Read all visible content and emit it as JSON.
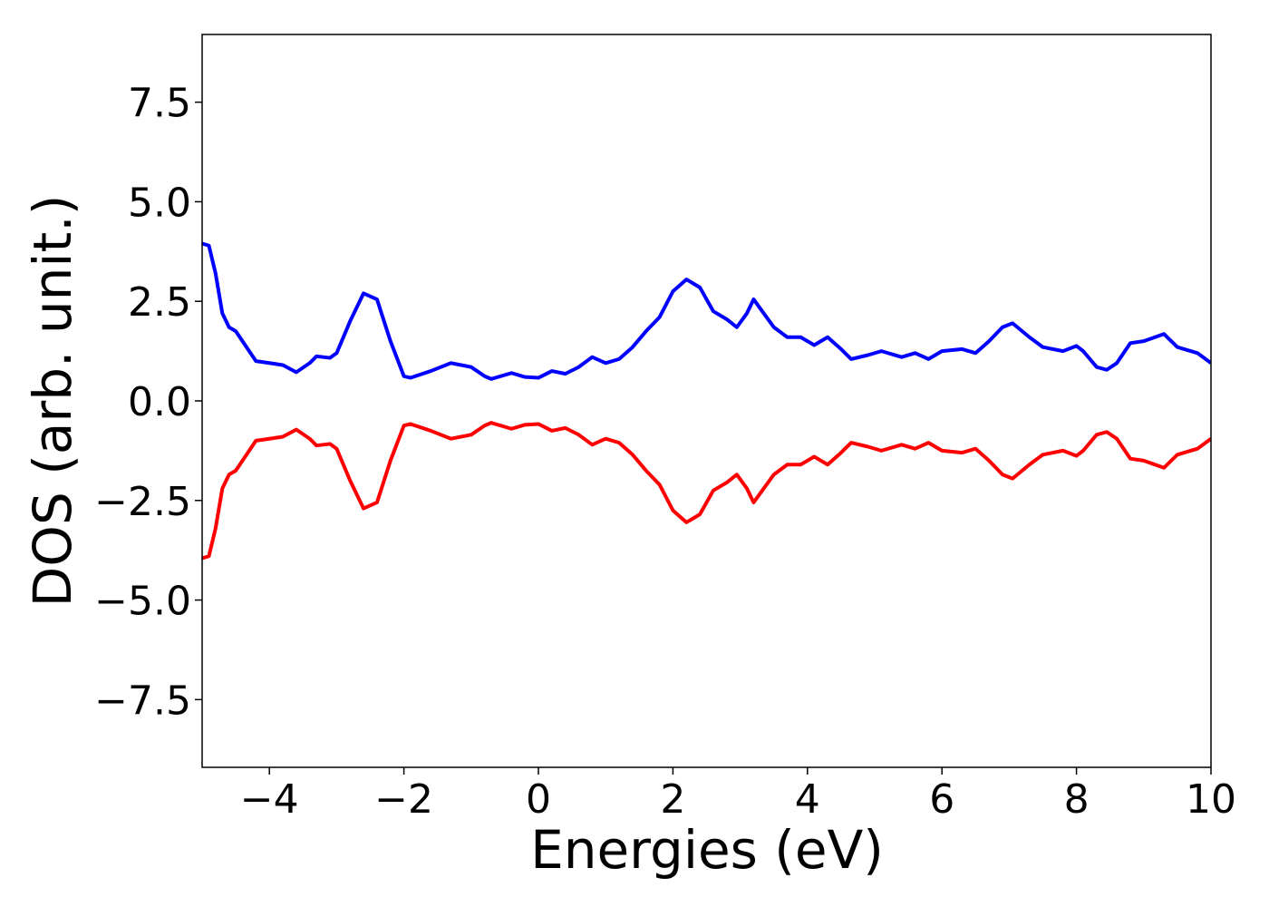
{
  "chart_data": {
    "type": "line",
    "xlabel": "Energies (eV)",
    "ylabel": "DOS (arb. unit.)",
    "x": [
      -5.0,
      -4.9,
      -4.8,
      -4.7,
      -4.6,
      -4.5,
      -4.4,
      -4.2,
      -4.0,
      -3.8,
      -3.6,
      -3.4,
      -3.3,
      -3.1,
      -3.0,
      -2.8,
      -2.6,
      -2.4,
      -2.2,
      -2.0,
      -1.9,
      -1.6,
      -1.3,
      -1.0,
      -0.8,
      -0.7,
      -0.4,
      -0.2,
      0.0,
      0.2,
      0.4,
      0.6,
      0.8,
      1.0,
      1.2,
      1.4,
      1.6,
      1.8,
      2.0,
      2.2,
      2.4,
      2.6,
      2.8,
      2.95,
      3.1,
      3.2,
      3.35,
      3.5,
      3.7,
      3.9,
      4.1,
      4.3,
      4.5,
      4.65,
      4.9,
      5.1,
      5.4,
      5.6,
      5.8,
      6.0,
      6.3,
      6.5,
      6.7,
      6.9,
      7.05,
      7.3,
      7.5,
      7.8,
      8.0,
      8.1,
      8.3,
      8.45,
      8.6,
      8.8,
      9.0,
      9.3,
      9.5,
      9.8,
      10.0
    ],
    "series": [
      {
        "color": "#0000ff",
        "values": [
          3.95,
          3.9,
          3.2,
          2.2,
          1.85,
          1.75,
          1.5,
          1.0,
          0.95,
          0.9,
          0.72,
          0.95,
          1.12,
          1.08,
          1.2,
          2.0,
          2.7,
          2.55,
          1.5,
          0.62,
          0.58,
          0.75,
          0.95,
          0.85,
          0.62,
          0.55,
          0.7,
          0.6,
          0.58,
          0.75,
          0.68,
          0.85,
          1.1,
          0.95,
          1.05,
          1.35,
          1.75,
          2.1,
          2.75,
          3.05,
          2.85,
          2.25,
          2.05,
          1.85,
          2.2,
          2.55,
          2.2,
          1.85,
          1.6,
          1.6,
          1.4,
          1.6,
          1.3,
          1.05,
          1.15,
          1.25,
          1.1,
          1.2,
          1.05,
          1.25,
          1.3,
          1.2,
          1.5,
          1.85,
          1.95,
          1.6,
          1.35,
          1.25,
          1.38,
          1.25,
          0.85,
          0.78,
          0.95,
          1.45,
          1.5,
          1.68,
          1.35,
          1.2,
          0.95
        ]
      },
      {
        "color": "#ff0000",
        "values": [
          -3.95,
          -3.9,
          -3.2,
          -2.2,
          -1.85,
          -1.75,
          -1.5,
          -1.0,
          -0.95,
          -0.9,
          -0.72,
          -0.95,
          -1.12,
          -1.08,
          -1.2,
          -2.0,
          -2.7,
          -2.55,
          -1.5,
          -0.62,
          -0.58,
          -0.75,
          -0.95,
          -0.85,
          -0.62,
          -0.55,
          -0.7,
          -0.6,
          -0.58,
          -0.75,
          -0.68,
          -0.85,
          -1.1,
          -0.95,
          -1.05,
          -1.35,
          -1.75,
          -2.1,
          -2.75,
          -3.05,
          -2.85,
          -2.25,
          -2.05,
          -1.85,
          -2.2,
          -2.55,
          -2.2,
          -1.85,
          -1.6,
          -1.6,
          -1.4,
          -1.6,
          -1.3,
          -1.05,
          -1.15,
          -1.25,
          -1.1,
          -1.2,
          -1.05,
          -1.25,
          -1.3,
          -1.2,
          -1.5,
          -1.85,
          -1.95,
          -1.6,
          -1.35,
          -1.25,
          -1.38,
          -1.25,
          -0.85,
          -0.78,
          -0.95,
          -1.45,
          -1.5,
          -1.68,
          -1.35,
          -1.2,
          -0.95
        ]
      }
    ],
    "xlim": [
      -5,
      10
    ],
    "ylim": [
      -9.2,
      9.2
    ],
    "xticks": [
      {
        "value": -4,
        "label": "−4"
      },
      {
        "value": -2,
        "label": "−2"
      },
      0,
      2,
      4,
      6,
      8,
      10
    ],
    "yticks": [
      {
        "value": -7.5,
        "label": "−7.5"
      },
      {
        "value": -5,
        "label": "−5.0"
      },
      {
        "value": -2.5,
        "label": "−2.5"
      },
      {
        "value": 0,
        "label": "0.0"
      },
      {
        "value": 2.5,
        "label": "2.5"
      },
      {
        "value": 5,
        "label": "5.0"
      },
      {
        "value": 7.5,
        "label": "7.5"
      }
    ],
    "grid": false
  }
}
